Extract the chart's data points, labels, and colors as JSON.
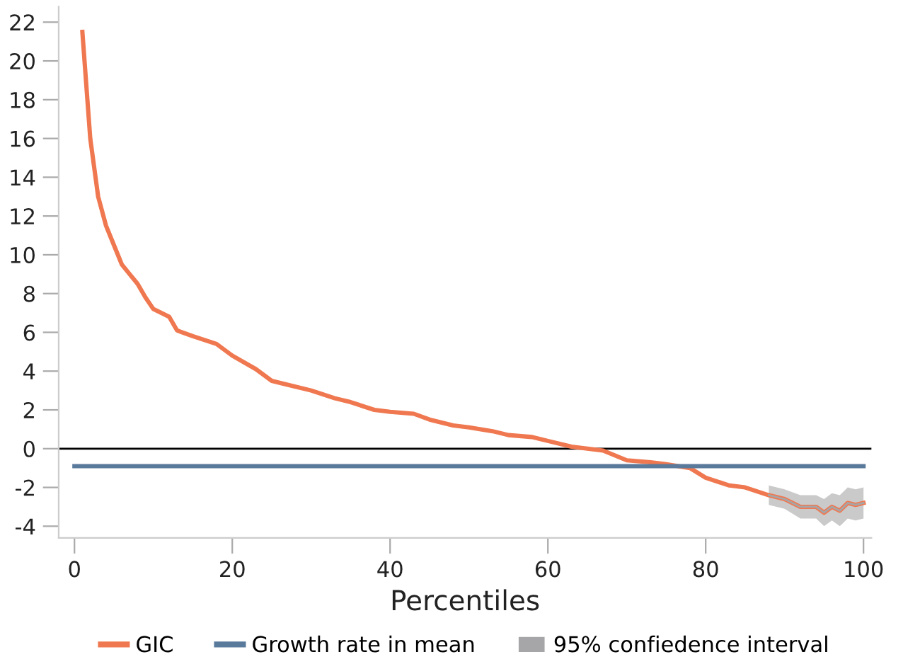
{
  "chart_data": {
    "type": "line",
    "xlabel": "Percentiles",
    "xlim": [
      -2,
      101
    ],
    "ylim": [
      -4.6,
      22.8
    ],
    "xticks": [
      0,
      20,
      40,
      60,
      80,
      100
    ],
    "yticks": [
      -4,
      -2,
      0,
      2,
      4,
      6,
      8,
      10,
      12,
      14,
      16,
      18,
      20,
      22
    ],
    "grid": false,
    "legend": "bottom",
    "marker": "none",
    "line_style": "solid",
    "ref_lines": [
      {
        "axis": "y",
        "value": 0,
        "color": "#000000"
      }
    ],
    "series": [
      {
        "name": "GIC",
        "color": "#f07850",
        "x": [
          1,
          2,
          3,
          4,
          5,
          6,
          7,
          8,
          9,
          10,
          12,
          13,
          15,
          18,
          20,
          23,
          25,
          27,
          30,
          33,
          35,
          38,
          40,
          43,
          45,
          48,
          50,
          53,
          55,
          58,
          60,
          63,
          65,
          67,
          70,
          73,
          75,
          78,
          80,
          83,
          85,
          88,
          90,
          92,
          94,
          95,
          96,
          97,
          98,
          99,
          100
        ],
        "values": [
          21.5,
          16,
          13,
          11.5,
          10.5,
          9.5,
          9,
          8.5,
          7.8,
          7.2,
          6.8,
          6.1,
          5.8,
          5.4,
          4.8,
          4.1,
          3.5,
          3.3,
          3.0,
          2.6,
          2.4,
          2.0,
          1.9,
          1.8,
          1.5,
          1.2,
          1.1,
          0.9,
          0.7,
          0.6,
          0.4,
          0.1,
          0.0,
          -0.1,
          -0.6,
          -0.7,
          -0.8,
          -1.0,
          -1.5,
          -1.9,
          -2.0,
          -2.4,
          -2.6,
          -3.0,
          -3.0,
          -3.3,
          -3.0,
          -3.2,
          -2.8,
          -2.9,
          -2.8
        ]
      },
      {
        "name": "Growth rate in mean",
        "color": "#5a7a9c",
        "x": [
          0,
          100
        ],
        "values": [
          -0.9,
          -0.9
        ]
      },
      {
        "name": "95% confiedence interval",
        "color": "#a6a6a8",
        "x": [
          88,
          90,
          92,
          94,
          95,
          96,
          97,
          98,
          99,
          100
        ],
        "values": [
          -2.4,
          -2.6,
          -3.0,
          -3.0,
          -3.3,
          -3.0,
          -3.2,
          -2.8,
          -2.9,
          -2.8
        ],
        "lower": [
          -2.9,
          -3.1,
          -3.6,
          -3.6,
          -4.0,
          -3.7,
          -4.0,
          -3.6,
          -3.7,
          -3.6
        ],
        "upper": [
          -1.9,
          -2.1,
          -2.4,
          -2.4,
          -2.6,
          -2.3,
          -2.4,
          -2.0,
          -2.1,
          -2.0
        ]
      }
    ]
  }
}
